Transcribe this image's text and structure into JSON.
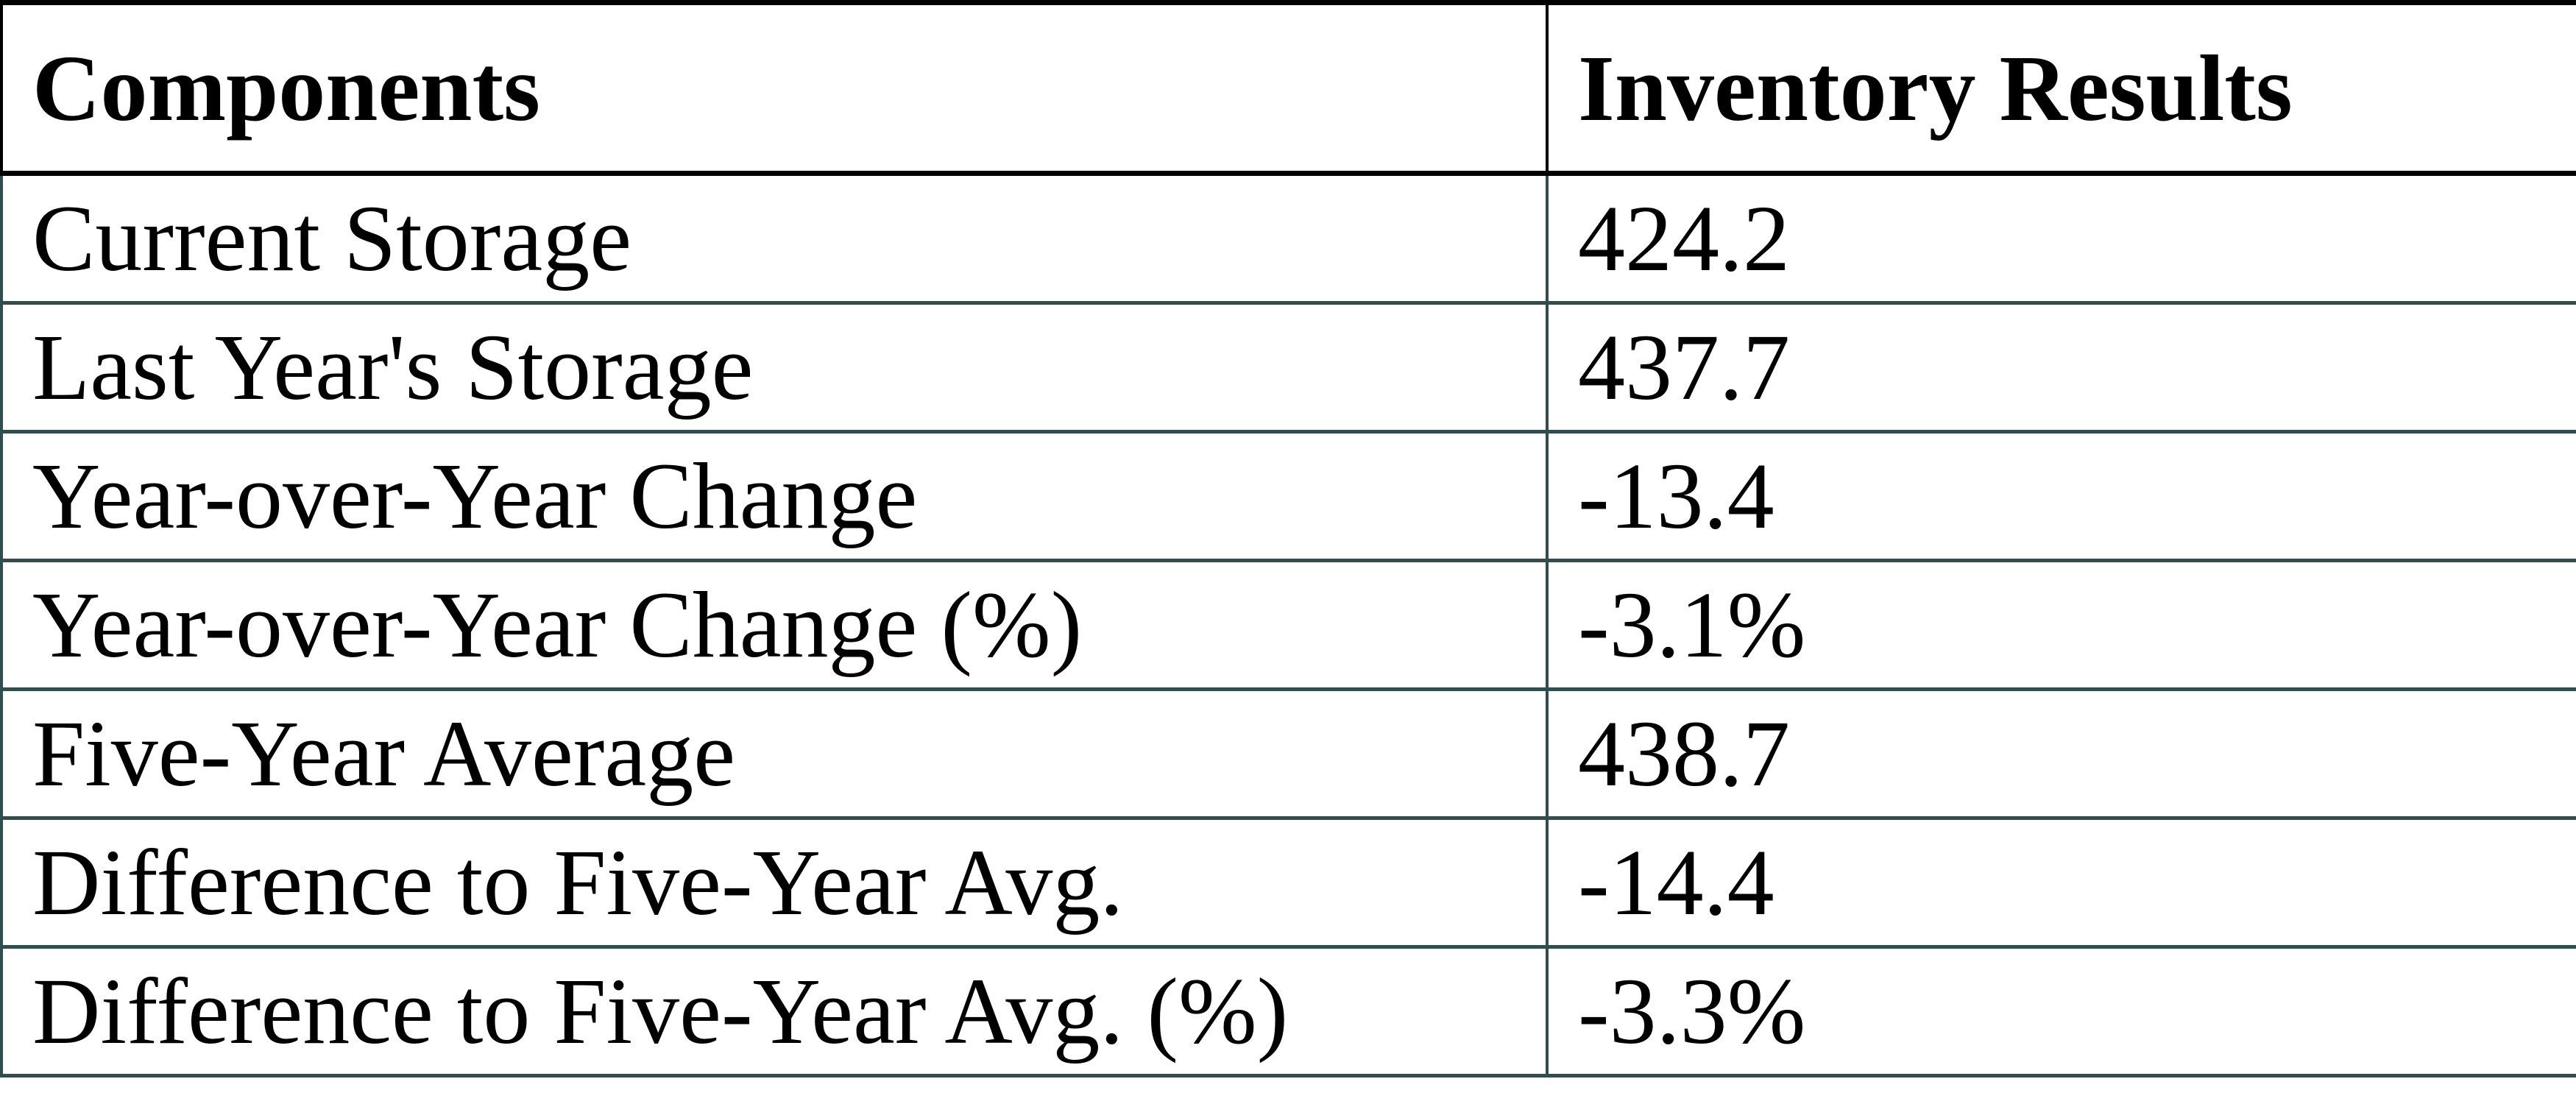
{
  "chart_data": {
    "type": "table",
    "columns": [
      "Components",
      "Inventory Results"
    ],
    "rows": [
      [
        "Current Storage",
        "424.2"
      ],
      [
        "Last Year's Storage",
        "437.7"
      ],
      [
        "Year-over-Year Change",
        "-13.4"
      ],
      [
        "Year-over-Year Change (%)",
        "-3.1%"
      ],
      [
        "Five-Year Average",
        "438.7"
      ],
      [
        "Difference to Five-Year Avg.",
        "-14.4"
      ],
      [
        "Difference to Five-Year Avg. (%)",
        "-3.3%"
      ]
    ]
  },
  "colors": {
    "header_border": "#000000",
    "body_border": "#2F4F4F",
    "text": "#000000",
    "background": "#FFFFFF"
  }
}
